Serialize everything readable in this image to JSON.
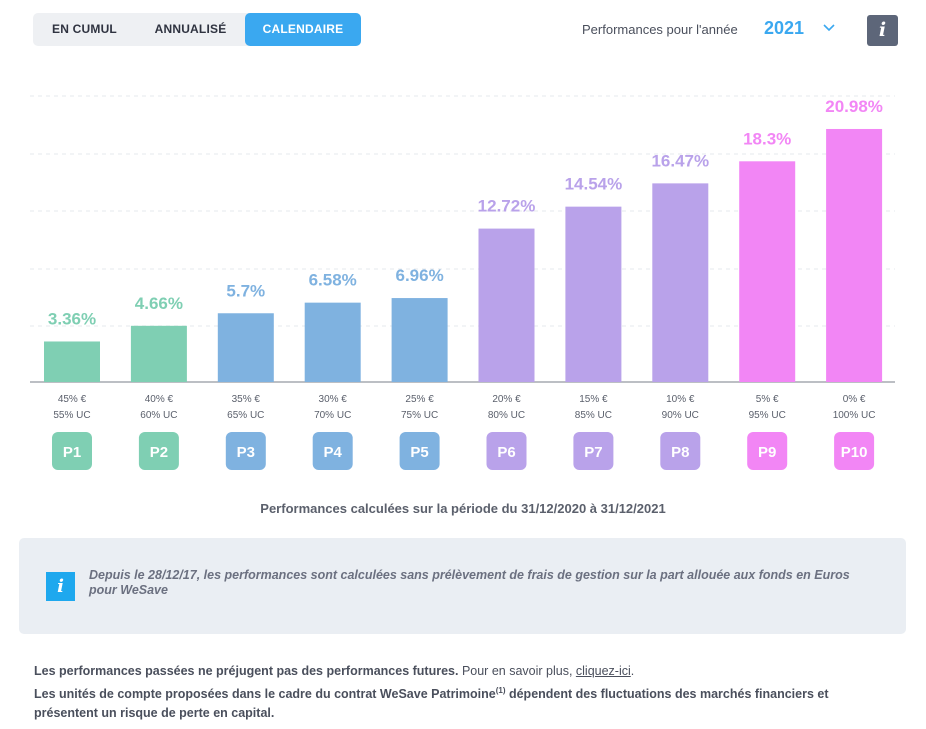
{
  "tabs": [
    {
      "label": "EN CUMUL",
      "active": false
    },
    {
      "label": "ANNUALISÉ",
      "active": false
    },
    {
      "label": "CALENDAIRE",
      "active": true
    }
  ],
  "year_selector": {
    "label": "Performances pour l'année",
    "value": "2021",
    "chevron_icon": "chevron-down-icon"
  },
  "info_button": {
    "glyph": "i",
    "icon": "info-icon"
  },
  "chart_data": {
    "type": "bar",
    "categories": [
      "P1",
      "P2",
      "P3",
      "P4",
      "P5",
      "P6",
      "P7",
      "P8",
      "P9",
      "P10"
    ],
    "values": [
      3.36,
      4.66,
      5.7,
      6.58,
      6.96,
      12.72,
      14.54,
      16.47,
      18.3,
      20.98
    ],
    "value_labels": [
      "3.36%",
      "4.66%",
      "5.7%",
      "6.58%",
      "6.96%",
      "12.72%",
      "14.54%",
      "16.47%",
      "18.3%",
      "20.98%"
    ],
    "allocation_euro": [
      "45% €",
      "40% €",
      "35% €",
      "30% €",
      "25% €",
      "20% €",
      "15% €",
      "10% €",
      "5% €",
      "0% €"
    ],
    "allocation_uc": [
      "55% UC",
      "60% UC",
      "65% UC",
      "70% UC",
      "75% UC",
      "80% UC",
      "85% UC",
      "90% UC",
      "95% UC",
      "100% UC"
    ],
    "colors": [
      "#7fcfb3",
      "#7fcfb3",
      "#7fb2e0",
      "#7fb2e0",
      "#7fb2e0",
      "#b9a2ea",
      "#b9a2ea",
      "#b9a2ea",
      "#f286f5",
      "#f286f5"
    ],
    "ylim": [
      0,
      25
    ],
    "grid": true,
    "title": "",
    "xlabel": "",
    "ylabel": ""
  },
  "period_note": "Performances calculées sur la période du 31/12/2020 à 31/12/2021",
  "info_box": {
    "icon": "info-icon",
    "glyph": "i",
    "text": "Depuis le 28/12/17, les performances sont calculées sans prélèvement de frais de gestion sur la part allouée aux fonds en Euros pour WeSave"
  },
  "footer": {
    "line1_bold": "Les performances passées ne préjugent pas des performances futures.",
    "line1_rest": " Pour en savoir plus, ",
    "line1_link": "cliquez-ici",
    "line1_end": ".",
    "line2_a": "Les unités de compte proposées dans le cadre du contrat WeSave Patrimoine",
    "line2_sup": "(1)",
    "line2_b": " dépendent des fluctuations des marchés financiers et présentent un risque de perte en capital."
  }
}
